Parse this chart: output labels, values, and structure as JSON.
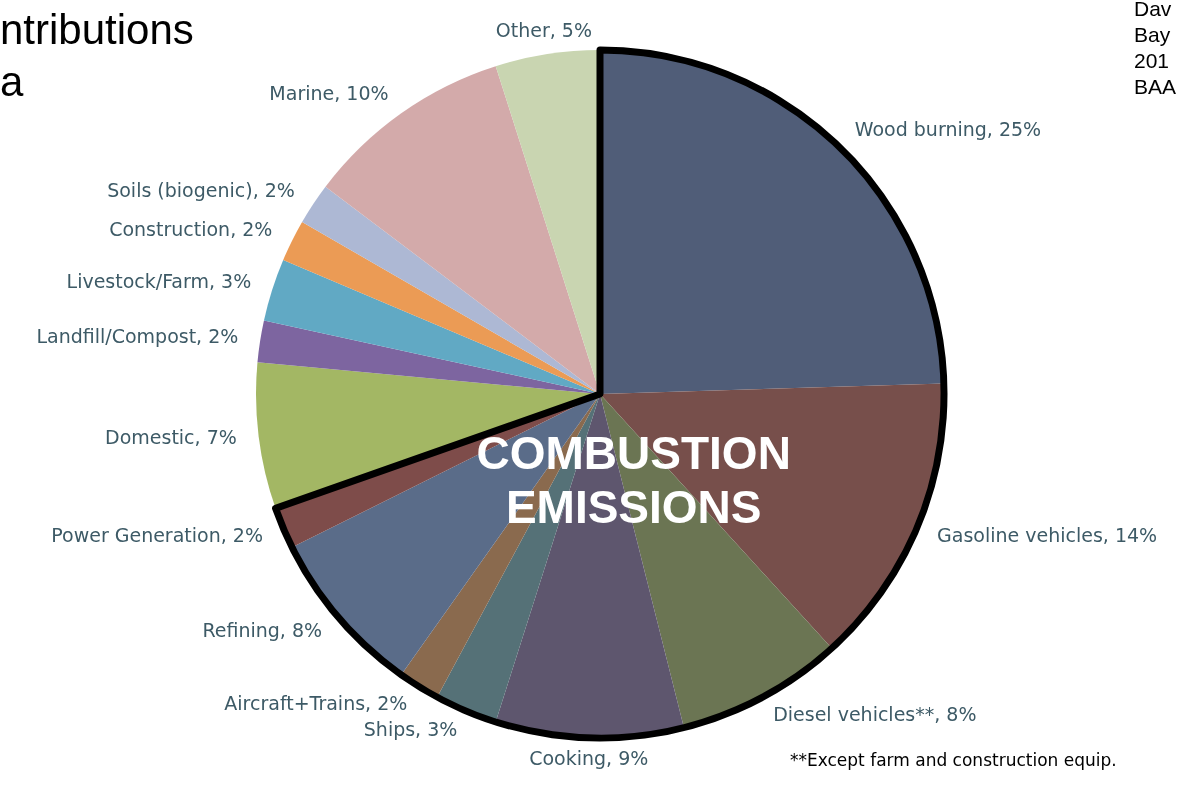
{
  "chart_data": {
    "type": "pie",
    "title": "ntributions\na",
    "categories": [
      "Wood burning",
      "Gasoline vehicles",
      "Diesel vehicles**",
      "Cooking",
      "Ships",
      "Aircraft+Trains",
      "Refining",
      "Power Generation",
      "Domestic",
      "Landfill/Compost",
      "Livestock/Farm",
      "Construction",
      "Soils (biogenic)",
      "Marine",
      "Other"
    ],
    "values": [
      25,
      14,
      8,
      9,
      3,
      2,
      8,
      2,
      7,
      2,
      3,
      2,
      2,
      10,
      5
    ],
    "value_labels": [
      "25%",
      "14%",
      "8%",
      "9%",
      "3%",
      "2%",
      "8%",
      "2%",
      "7%",
      "2%",
      "3%",
      "2%",
      "2%",
      "10%",
      "5%"
    ],
    "colors": [
      "#505d78",
      "#774f4b",
      "#6b7553",
      "#5e566e",
      "#557177",
      "#8a6a4e",
      "#5a6c89",
      "#7e4c4a",
      "#a3b764",
      "#7d65a0",
      "#61a9c4",
      "#eb9b55",
      "#adb8d4",
      "#d3aaaa",
      "#c9d5b1"
    ],
    "annotations": [
      "Dav\nBay\n201\nBAA",
      "**Except farm and construction equip.",
      "COMBUSTION\nEMISSIONS"
    ],
    "legend": false
  }
}
